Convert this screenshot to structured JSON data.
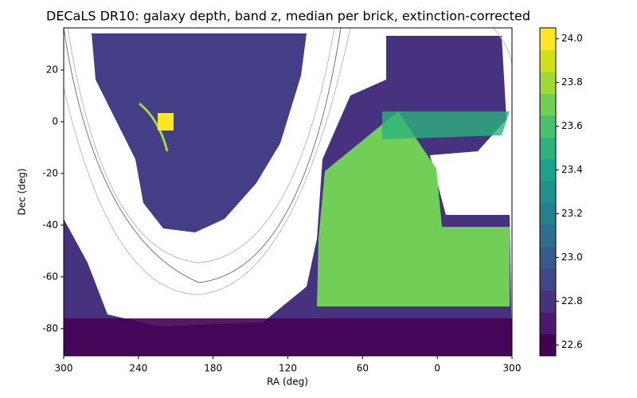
{
  "chart_data": {
    "type": "skymap",
    "title": "DECaLS DR10: galaxy depth, band z, median per brick, extinction-corrected",
    "xlabel": "RA (deg)",
    "ylabel": "Dec (deg)",
    "xlim": [
      300,
      -60
    ],
    "xticks": [
      300,
      240,
      180,
      120,
      60,
      0,
      {
        "value": -60,
        "label": "300"
      }
    ],
    "ylim": [
      -90.5,
      36.3
    ],
    "yticks": [
      20,
      0,
      -20,
      -40,
      -60,
      -80
    ],
    "colorbar": {
      "range": [
        22.55,
        24.05
      ],
      "ticks": [
        {
          "value": 24,
          "label": "24.0"
        },
        23.8,
        23.6,
        23.4,
        23.2,
        {
          "value": 23,
          "label": "23.0"
        },
        22.8,
        22.6
      ],
      "cmap": [
        "#440154",
        "#481b6d",
        "#46327e",
        "#3f4788",
        "#365c8d",
        "#2e6e8e",
        "#277f8e",
        "#21918c",
        "#1fa187",
        "#2db27d",
        "#4ac16d",
        "#71cf57",
        "#a0da39",
        "#d0e11c",
        "#fde725"
      ]
    }
  }
}
